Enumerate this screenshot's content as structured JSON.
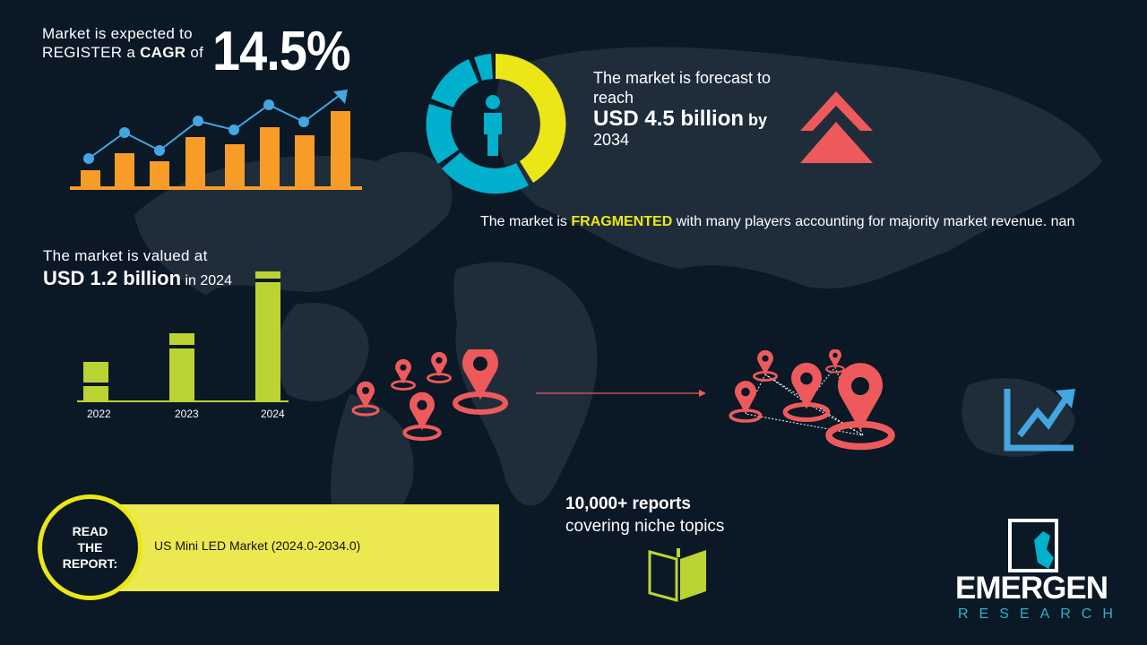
{
  "cagr": {
    "line1": "Market is expected to",
    "line2_prefix": "REGISTER a ",
    "line2_bold": "CAGR",
    "line2_suffix": " of",
    "value": "14.5%"
  },
  "forecast": {
    "line1": "The market is forecast to reach",
    "value": "USD 4.5 billion",
    "by": "by",
    "year": "2034"
  },
  "fragmented": {
    "prefix": "The market is ",
    "highlight": "FRAGMENTED",
    "suffix": " with many players accounting for majority market revenue. nan"
  },
  "valued": {
    "line1": "The market is valued at",
    "value": "USD 1.2 billion",
    "suffix": "in 2024"
  },
  "value_chart": {
    "years": [
      "2022",
      "2023",
      "2024"
    ]
  },
  "read_report": {
    "label_lines": [
      "READ",
      "THE",
      "REPORT:"
    ],
    "title": "US Mini LED Market (2024.0-2034.0)"
  },
  "reports": {
    "line1": "10,000+ reports",
    "line2": "covering niche topics"
  },
  "logo": {
    "name": "EMERGEN",
    "sub": "RESEARCH"
  },
  "colors": {
    "background": "#0b1826",
    "orange": "#f89c28",
    "blue": "#44a6e0",
    "yellow": "#ece617",
    "cyan": "#00b0cc",
    "red": "#ee5a5c",
    "green": "#bcd334"
  }
}
